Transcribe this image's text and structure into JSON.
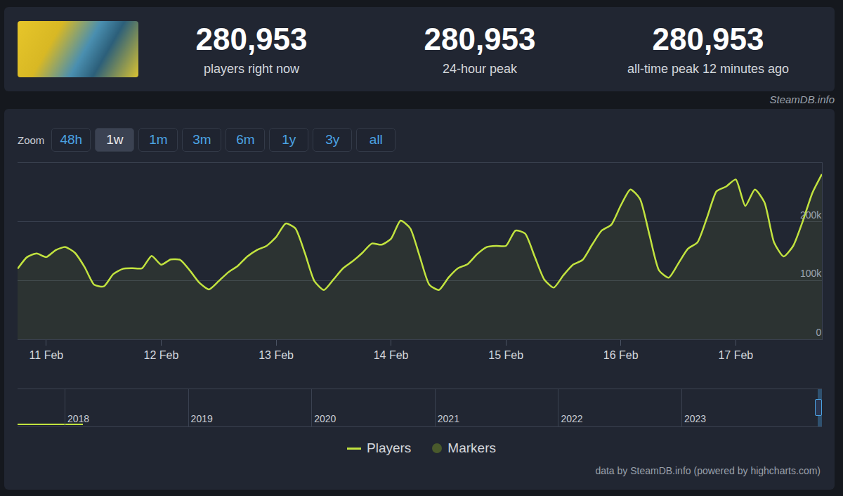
{
  "header": {
    "stats": [
      {
        "value": "280,953",
        "label": "players right now"
      },
      {
        "value": "280,953",
        "label": "24-hour peak"
      },
      {
        "value": "280,953",
        "label": "all-time peak 12 minutes ago"
      }
    ],
    "source": "SteamDB.info"
  },
  "zoom": {
    "label": "Zoom",
    "buttons": [
      "48h",
      "1w",
      "1m",
      "3m",
      "6m",
      "1y",
      "3y",
      "all"
    ],
    "active": "1w"
  },
  "chart_data": {
    "type": "line",
    "categories": [
      null,
      null,
      null,
      "11 Feb",
      null,
      null,
      null,
      null,
      null,
      null,
      null,
      null,
      null,
      null,
      null,
      "12 Feb",
      null,
      null,
      null,
      null,
      null,
      null,
      null,
      null,
      null,
      null,
      null,
      "13 Feb",
      null,
      null,
      null,
      null,
      null,
      null,
      null,
      null,
      null,
      null,
      null,
      "14 Feb",
      null,
      null,
      null,
      null,
      null,
      null,
      null,
      null,
      null,
      null,
      null,
      "15 Feb",
      null,
      null,
      null,
      null,
      null,
      null,
      null,
      null,
      null,
      null,
      null,
      "16 Feb",
      null,
      null,
      null,
      null,
      null,
      null,
      null,
      null,
      null,
      null,
      null,
      "17 Feb",
      null,
      null,
      null,
      null,
      null,
      null,
      null,
      null,
      null
    ],
    "series": [
      {
        "name": "Players",
        "color": "#c2e33f",
        "line_style": "solid",
        "values": [
          120000,
          140000,
          146000,
          140000,
          152000,
          157000,
          147000,
          123000,
          93000,
          90000,
          111000,
          120000,
          121000,
          121000,
          142000,
          127000,
          136000,
          135000,
          117000,
          96000,
          85000,
          99000,
          114000,
          125000,
          141000,
          152000,
          159000,
          174000,
          197000,
          189000,
          147000,
          99000,
          84000,
          102000,
          121000,
          133000,
          147000,
          163000,
          161000,
          171000,
          202000,
          189000,
          141000,
          93000,
          84000,
          105000,
          121000,
          128000,
          145000,
          157000,
          159000,
          159000,
          185000,
          180000,
          141000,
          102000,
          88000,
          109000,
          127000,
          135000,
          161000,
          185000,
          195000,
          228000,
          255000,
          239000,
          177000,
          117000,
          105000,
          129000,
          154000,
          165000,
          207000,
          252000,
          260000,
          272000,
          227000,
          255000,
          233000,
          165000,
          141000,
          159000,
          201000,
          249000,
          280953
        ]
      },
      {
        "name": "Markers",
        "color": "#4a5a2c",
        "marker": "circle",
        "values": [
          null,
          null,
          null,
          null,
          null,
          null,
          null,
          null,
          null,
          null,
          null,
          null,
          null,
          null,
          null,
          null,
          null,
          null,
          null,
          null,
          null,
          null,
          null,
          null,
          null,
          null,
          null,
          null,
          null,
          null,
          null,
          null,
          null,
          null,
          null,
          null,
          null,
          null,
          null,
          null,
          null,
          null,
          null,
          null,
          null,
          null,
          null,
          null,
          null,
          null,
          null,
          null,
          null,
          null,
          null,
          null,
          null,
          null,
          null,
          null,
          null,
          null,
          null,
          null,
          null,
          null,
          null,
          null,
          null,
          null,
          null,
          null,
          null,
          null,
          null,
          null,
          null,
          null,
          null,
          null,
          null,
          null,
          null,
          null,
          null
        ]
      }
    ],
    "ylim": [
      0,
      300000
    ],
    "yticks": [
      0,
      {
        "value": 100000,
        "label": "100k"
      },
      {
        "value": 200000,
        "label": "200k"
      }
    ],
    "grid": true,
    "legend": "bottom"
  },
  "navigator": {
    "labels": [
      "2018",
      "2019",
      "2020",
      "2021",
      "2022",
      "2023"
    ]
  },
  "credit": "data by SteamDB.info (powered by highcharts.com)"
}
